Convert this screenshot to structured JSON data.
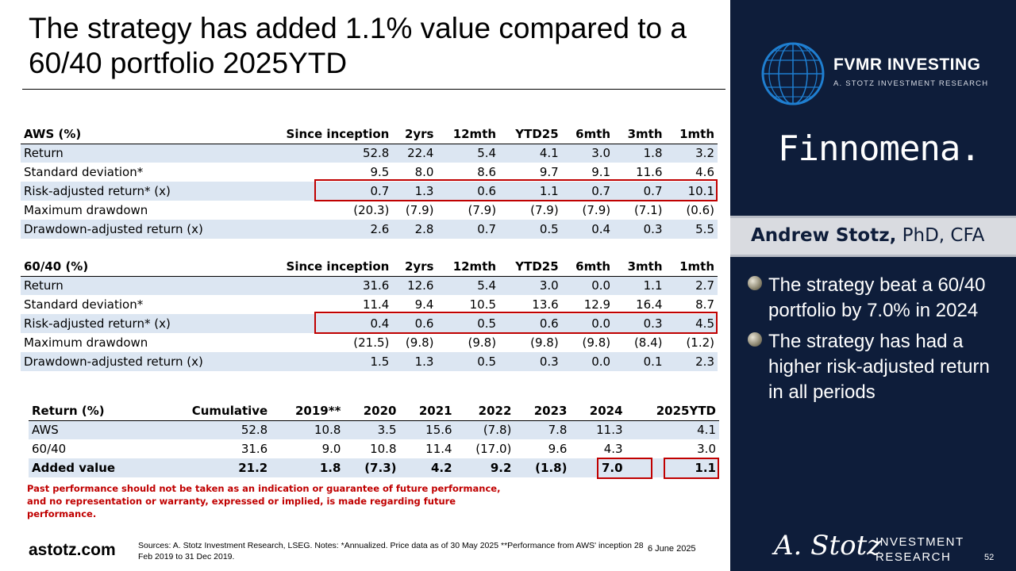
{
  "title": "The strategy has added 1.1% value compared to a 60/40 portfolio 2025YTD",
  "aws_table": {
    "headers": [
      "AWS (%)",
      "Since inception",
      "2yrs",
      "12mth",
      "YTD25",
      "6mth",
      "3mth",
      "1mth"
    ],
    "rows": [
      [
        "Return",
        "52.8",
        "22.4",
        "5.4",
        "4.1",
        "3.0",
        "1.8",
        "3.2"
      ],
      [
        "Standard deviation*",
        "9.5",
        "8.0",
        "8.6",
        "9.7",
        "9.1",
        "11.6",
        "4.6"
      ],
      [
        "Risk-adjusted return* (x)",
        "0.7",
        "1.3",
        "0.6",
        "1.1",
        "0.7",
        "0.7",
        "10.1"
      ],
      [
        "Maximum drawdown",
        "(20.3)",
        "(7.9)",
        "(7.9)",
        "(7.9)",
        "(7.9)",
        "(7.1)",
        "(0.6)"
      ],
      [
        "Drawdown-adjusted return (x)",
        "2.6",
        "2.8",
        "0.7",
        "0.5",
        "0.4",
        "0.3",
        "5.5"
      ]
    ]
  },
  "sixty_forty_table": {
    "headers": [
      "60/40 (%)",
      "Since inception",
      "2yrs",
      "12mth",
      "YTD25",
      "6mth",
      "3mth",
      "1mth"
    ],
    "rows": [
      [
        "Return",
        "31.6",
        "12.6",
        "5.4",
        "3.0",
        "0.0",
        "1.1",
        "2.7"
      ],
      [
        "Standard deviation*",
        "11.4",
        "9.4",
        "10.5",
        "13.6",
        "12.9",
        "16.4",
        "8.7"
      ],
      [
        "Risk-adjusted return* (x)",
        "0.4",
        "0.6",
        "0.5",
        "0.6",
        "0.0",
        "0.3",
        "4.5"
      ],
      [
        "Maximum drawdown",
        "(21.5)",
        "(9.8)",
        "(9.8)",
        "(9.8)",
        "(9.8)",
        "(8.4)",
        "(1.2)"
      ],
      [
        "Drawdown-adjusted return (x)",
        "1.5",
        "1.3",
        "0.5",
        "0.3",
        "0.0",
        "0.1",
        "2.3"
      ]
    ]
  },
  "returns_table": {
    "headers": [
      "Return (%)",
      "Cumulative",
      "2019**",
      "2020",
      "2021",
      "2022",
      "2023",
      "2024",
      "2025YTD"
    ],
    "rows": [
      [
        "AWS",
        "52.8",
        "10.8",
        "3.5",
        "15.6",
        "(7.8)",
        "7.8",
        "11.3",
        "4.1"
      ],
      [
        "60/40",
        "31.6",
        "9.0",
        "10.8",
        "11.4",
        "(17.0)",
        "9.6",
        "4.3",
        "3.0"
      ],
      [
        "Added value",
        "21.2",
        "1.8",
        "(7.3)",
        "4.2",
        "9.2",
        "(1.8)",
        "7.0",
        "1.1"
      ]
    ]
  },
  "disclaimer": "Past performance should not be taken as an indication or guarantee of future performance, and no representation or warranty, expressed or implied, is made regarding future performance.",
  "footer": {
    "brand": "astotz.com",
    "sources": "Sources: A. Stotz Investment Research, LSEG. Notes: *Annualized. Price data as of 30 May 2025 **Performance from AWS' inception 28 Feb 2019 to 31 Dec 2019.",
    "date": "6 June 2025",
    "page": "52"
  },
  "panel": {
    "fvmr_name": "FVMR INVESTING",
    "fvmr_sub": "A. STOTZ INVESTMENT RESEARCH",
    "partner": "Finnomena.",
    "presenter_name": "Andrew Stotz,",
    "presenter_title": " PhD, CFA",
    "bullets": [
      "The strategy beat a 60/40 portfolio by 7.0% in 2024",
      "The strategy has had a higher risk-adjusted return in all periods"
    ],
    "signature": "A. Stotz",
    "logo_line1": "INVESTMENT",
    "logo_line2": "RESEARCH"
  },
  "colors": {
    "highlight": "#c00000",
    "shade": "#dce6f2",
    "panel": "#0e1d3a"
  }
}
